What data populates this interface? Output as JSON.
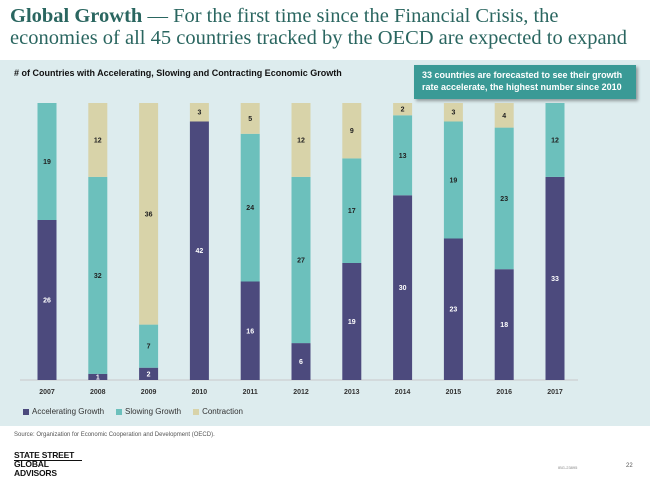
{
  "title": {
    "bold": "Global Growth",
    "rest": " — For the first time since the Financial Crisis, the economies of all 45 countries tracked by the OECD are expected to expand"
  },
  "chart_heading": "# of Countries with Accelerating, Slowing and Contracting Economic Growth",
  "callout": "33 countries are forecasted to see their growth rate accelerate, the highest number since 2010",
  "colors": {
    "accelerating": "#4c4a7d",
    "slowing": "#6cc0bc",
    "contraction": "#d8d3a9",
    "panel": "#ddecee",
    "accent": "#3a9a96"
  },
  "chart_data": {
    "type": "bar",
    "stacked": true,
    "title": "# of Countries with Accelerating, Slowing and Contracting Economic Growth",
    "xlabel": "",
    "ylabel": "",
    "ylim": [
      0,
      45
    ],
    "categories": [
      "2007",
      "2008",
      "2009",
      "2010",
      "2011",
      "2012",
      "2013",
      "2014",
      "2015",
      "2016",
      "2017"
    ],
    "series": [
      {
        "name": "Accelerating Growth",
        "color": "#4c4a7d",
        "values": [
          26,
          1,
          2,
          42,
          16,
          6,
          19,
          30,
          23,
          18,
          33
        ]
      },
      {
        "name": "Slowing Growth",
        "color": "#6cc0bc",
        "values": [
          19,
          32,
          7,
          0,
          24,
          27,
          17,
          13,
          19,
          23,
          12
        ]
      },
      {
        "name": "Contraction",
        "color": "#d8d3a9",
        "values": [
          0,
          12,
          36,
          3,
          5,
          12,
          9,
          2,
          3,
          4,
          0
        ]
      }
    ],
    "legend_position": "bottom-left"
  },
  "legend": [
    "Accelerating Growth",
    "Slowing Growth",
    "Contraction"
  ],
  "source": "Source: Organization for Economic Cooperation and Development (OECD).",
  "brand": {
    "line1": "STATE STREET",
    "line2": "GLOBAL ADVISORS"
  },
  "doc_id": "IBG-23895",
  "page_number": "22"
}
